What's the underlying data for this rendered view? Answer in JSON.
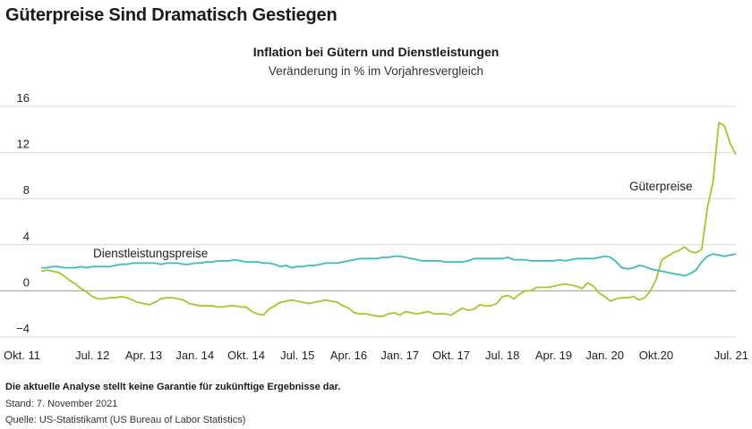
{
  "header": {
    "title": "Güterpreise Sind Dramatisch Gestiegen"
  },
  "chart_data": {
    "type": "line",
    "title": "Inflation bei Gütern und Dienstleistungen",
    "subtitle": "Veränderung in % im Vorjahresvergleich",
    "xlabel": "",
    "ylabel": "",
    "ylim": [
      -4,
      16
    ],
    "yticks": [
      "16",
      "12",
      "8",
      "4",
      "0",
      "−4"
    ],
    "ytick_values": [
      16,
      12,
      8,
      4,
      0,
      -4
    ],
    "x_start": "2011-10",
    "x_end": "2021-09",
    "x_tick_labels": [
      "Okt. 11",
      "Jul. 12",
      "Apr. 13",
      "Jan. 14",
      "Okt. 14",
      "Jul. 15",
      "Apr. 16",
      "Jan. 17",
      "Okt. 17",
      "Jul. 18",
      "Apr. 19",
      "Jan. 20",
      "Okt.20",
      "Jul. 21"
    ],
    "x_tick_month_index": [
      0,
      9,
      18,
      27,
      36,
      45,
      54,
      63,
      72,
      81,
      90,
      99,
      108,
      117
    ],
    "grid": true,
    "series": [
      {
        "name": "Güterpreise",
        "label": "Güterpreise",
        "color": "#a8c52a",
        "values": [
          1.7,
          1.8,
          1.7,
          1.6,
          1.3,
          0.9,
          0.6,
          0.2,
          -0.1,
          -0.5,
          -0.7,
          -0.7,
          -0.6,
          -0.6,
          -0.5,
          -0.6,
          -0.8,
          -1.0,
          -1.1,
          -1.2,
          -1.0,
          -0.7,
          -0.6,
          -0.6,
          -0.7,
          -0.8,
          -1.1,
          -1.2,
          -1.3,
          -1.3,
          -1.3,
          -1.4,
          -1.4,
          -1.3,
          -1.3,
          -1.4,
          -1.4,
          -1.8,
          -2.0,
          -2.1,
          -1.6,
          -1.3,
          -1.0,
          -0.9,
          -0.8,
          -0.9,
          -1.0,
          -1.1,
          -1.0,
          -0.9,
          -0.8,
          -0.9,
          -1.0,
          -1.3,
          -1.5,
          -1.9,
          -2.0,
          -2.0,
          -2.1,
          -2.2,
          -2.2,
          -2.0,
          -1.9,
          -2.1,
          -1.8,
          -1.9,
          -2.0,
          -1.9,
          -1.8,
          -2.0,
          -2.0,
          -2.0,
          -2.1,
          -1.8,
          -1.5,
          -1.7,
          -1.6,
          -1.2,
          -1.3,
          -1.3,
          -1.1,
          -0.5,
          -0.4,
          -0.7,
          -0.3,
          0.0,
          0.0,
          0.3,
          0.3,
          0.3,
          0.4,
          0.5,
          0.6,
          0.5,
          0.4,
          0.2,
          0.7,
          0.4,
          -0.2,
          -0.5,
          -0.9,
          -0.7,
          -0.6,
          -0.6,
          -0.5,
          -0.8,
          -0.6,
          0.0,
          1.0,
          2.7,
          3.0,
          3.3,
          3.5,
          3.8,
          3.4,
          3.3,
          3.6,
          7.2,
          9.5,
          14.6,
          14.3,
          12.8,
          11.8
        ],
        "label_position": "upper-right"
      },
      {
        "name": "Dienstleistungspreise",
        "label": "Dienstleistungspreise",
        "color": "#3dbcb4",
        "values": [
          2.0,
          2.0,
          2.1,
          2.1,
          2.0,
          2.0,
          2.0,
          2.1,
          2.0,
          2.1,
          2.1,
          2.1,
          2.1,
          2.2,
          2.3,
          2.3,
          2.4,
          2.4,
          2.4,
          2.4,
          2.4,
          2.3,
          2.4,
          2.4,
          2.4,
          2.3,
          2.3,
          2.4,
          2.4,
          2.5,
          2.5,
          2.6,
          2.6,
          2.6,
          2.7,
          2.6,
          2.5,
          2.5,
          2.5,
          2.4,
          2.4,
          2.3,
          2.1,
          2.2,
          2.0,
          2.1,
          2.1,
          2.2,
          2.2,
          2.3,
          2.4,
          2.4,
          2.4,
          2.5,
          2.6,
          2.7,
          2.8,
          2.8,
          2.8,
          2.8,
          2.9,
          2.9,
          3.0,
          3.0,
          2.9,
          2.8,
          2.7,
          2.6,
          2.6,
          2.6,
          2.6,
          2.5,
          2.5,
          2.5,
          2.5,
          2.6,
          2.8,
          2.8,
          2.8,
          2.8,
          2.8,
          2.8,
          2.9,
          2.7,
          2.7,
          2.7,
          2.6,
          2.6,
          2.6,
          2.6,
          2.6,
          2.7,
          2.6,
          2.7,
          2.8,
          2.8,
          2.8,
          2.8,
          2.9,
          3.0,
          2.9,
          2.5,
          2.0,
          1.9,
          2.0,
          2.2,
          2.1,
          1.9,
          1.8,
          1.7,
          1.6,
          1.5,
          1.4,
          1.3,
          1.5,
          1.8,
          2.5,
          3.0,
          3.2,
          3.1,
          3.0,
          3.1,
          3.2
        ],
        "label_position": "left"
      }
    ]
  },
  "footer": {
    "disclaimer": "Die aktuelle Analyse stellt keine Garantie für zukünftige Ergebnisse dar.",
    "date": "Stand: 7. November 2021",
    "source": "Quelle: US-Statistikamt (US Bureau of Labor Statistics)"
  }
}
